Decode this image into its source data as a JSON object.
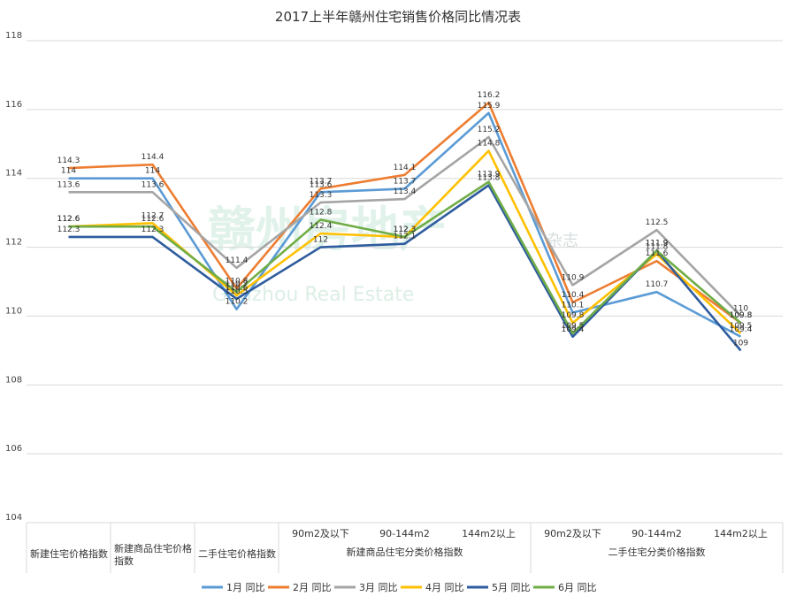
{
  "chart_data": {
    "type": "line",
    "title": "2017上半年赣州住宅销售价格同比情况表",
    "ylim": [
      104,
      118
    ],
    "yticks": [
      104,
      106,
      108,
      110,
      112,
      114,
      116,
      118
    ],
    "grid": true,
    "legend_position": "bottom",
    "categories": [
      {
        "label": "新建住宅价格指数",
        "group": ""
      },
      {
        "label": "新建商品住宅价格指数",
        "group": ""
      },
      {
        "label": "二手住宅价格指数",
        "group": ""
      },
      {
        "label": "90m2及以下",
        "group": "新建商品住宅分类价格指数"
      },
      {
        "label": "90-144m2",
        "group": "新建商品住宅分类价格指数"
      },
      {
        "label": "144m2以上",
        "group": "新建商品住宅分类价格指数"
      },
      {
        "label": "90m2及以下",
        "group": "二手住宅分类价格指数"
      },
      {
        "label": "90-144m2",
        "group": "二手住宅分类价格指数"
      },
      {
        "label": "144m2以上",
        "group": "二手住宅分类价格指数"
      }
    ],
    "groups": [
      "新建商品住宅分类价格指数",
      "二手住宅分类价格指数"
    ],
    "series": [
      {
        "name": "1月 同比",
        "color": "#5b9bd5",
        "values": [
          114,
          114,
          110.2,
          113.6,
          113.7,
          115.9,
          110.1,
          110.7,
          109.4
        ]
      },
      {
        "name": "2月 同比",
        "color": "#ed7d31",
        "values": [
          114.3,
          114.4,
          110.8,
          113.7,
          114.1,
          116.2,
          110.4,
          111.6,
          109.8
        ]
      },
      {
        "name": "3月 同比",
        "color": "#a5a5a5",
        "values": [
          113.6,
          113.6,
          111.4,
          113.3,
          113.4,
          115.2,
          110.9,
          112.5,
          110
        ]
      },
      {
        "name": "4月 同比",
        "color": "#ffc000",
        "values": [
          112.6,
          112.7,
          110.6,
          112.4,
          112.3,
          114.8,
          109.8,
          111.8,
          109.5
        ]
      },
      {
        "name": "5月 同比",
        "color": "#2e5c9e",
        "values": [
          112.3,
          112.3,
          110.5,
          112,
          112.1,
          113.8,
          109.4,
          111.9,
          109
        ]
      },
      {
        "name": "6月 同比",
        "color": "#70ad47",
        "values": [
          112.6,
          112.6,
          110.7,
          112.8,
          112.3,
          113.9,
          109.5,
          111.9,
          109.8
        ]
      }
    ],
    "watermark": {
      "main": "赣州房地产",
      "sub": "Ganzhou Real Estate",
      "side": "杂志"
    }
  }
}
